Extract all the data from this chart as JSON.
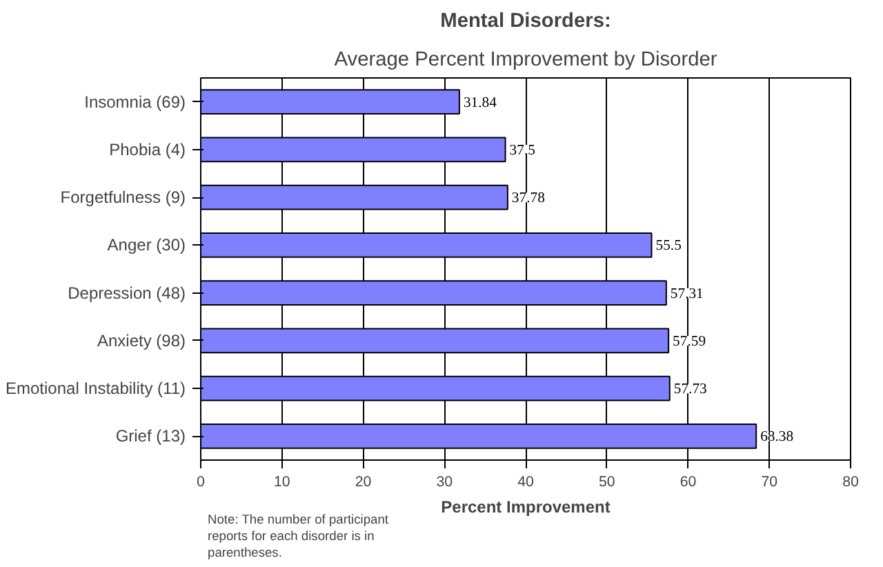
{
  "chart_data": {
    "type": "bar",
    "orientation": "horizontal",
    "title": "Mental Disorders:",
    "subtitle": "Average Percent Improvement by Disorder",
    "xlabel": "Percent Improvement",
    "categories": [
      "Insomnia (69)",
      "Phobia (4)",
      "Forgetfulness (9)",
      "Anger (30)",
      "Depression (48)",
      "Anxiety (98)",
      "Emotional Instability (11)",
      "Grief (13)"
    ],
    "values": [
      31.84,
      37.5,
      37.78,
      55.5,
      57.31,
      57.59,
      57.73,
      68.38
    ],
    "color": "#8080ff",
    "data_labels": true,
    "xlim": [
      0,
      80
    ],
    "xticks": [
      0,
      10,
      20,
      30,
      40,
      50,
      60,
      70,
      80
    ],
    "grid": "x",
    "annotations": [
      "Note: The number of participant reports for each disorder is in parentheses."
    ]
  }
}
